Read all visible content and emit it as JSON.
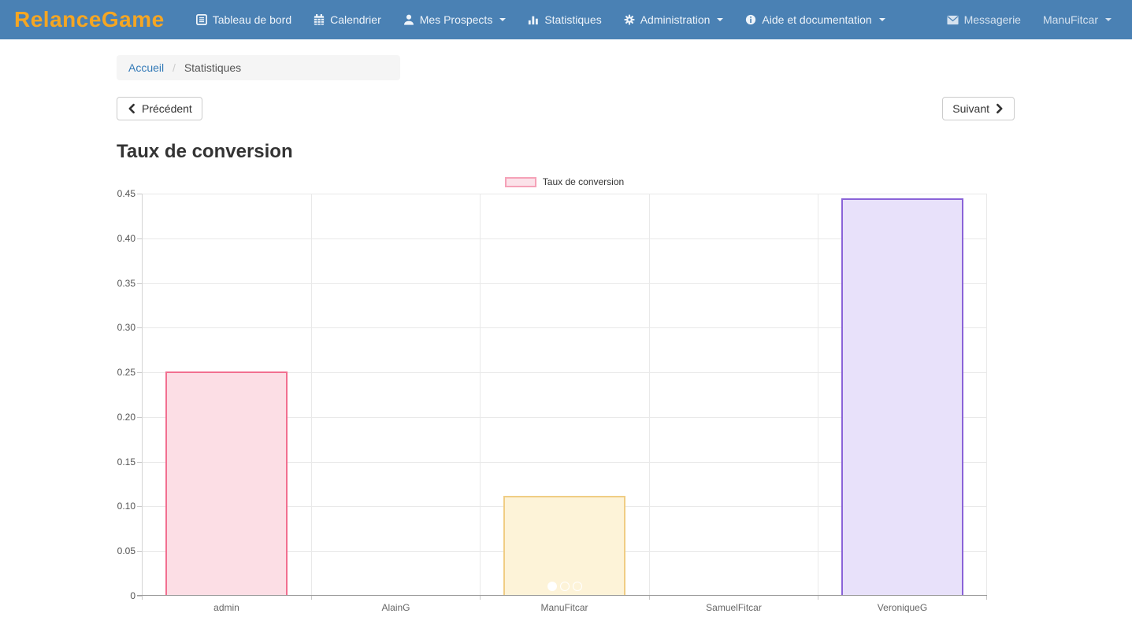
{
  "navbar": {
    "brand": "RelanceGame",
    "items": [
      {
        "label": "Tableau de bord",
        "icon": "journal-icon",
        "caret": false
      },
      {
        "label": "Calendrier",
        "icon": "calendar-icon",
        "caret": false
      },
      {
        "label": "Mes Prospects",
        "icon": "person-icon",
        "caret": true
      },
      {
        "label": "Statistiques",
        "icon": "bar-chart-icon",
        "caret": false
      },
      {
        "label": "Administration",
        "icon": "gear-icon",
        "caret": true
      },
      {
        "label": "Aide et documentation",
        "icon": "info-icon",
        "caret": true
      }
    ],
    "right_items": [
      {
        "label": "Messagerie",
        "icon": "envelope-icon",
        "caret": false
      },
      {
        "label": "ManuFitcar",
        "icon": null,
        "caret": true
      }
    ]
  },
  "breadcrumb": {
    "home": "Accueil",
    "separator": "/",
    "current": "Statistiques"
  },
  "pager": {
    "prev_label": "Précédent",
    "next_label": "Suivant"
  },
  "page_title": "Taux de conversion",
  "carousel": {
    "dots": 3,
    "active_index": 0
  },
  "chart_data": {
    "type": "bar",
    "title": "Taux de conversion",
    "legend_label": "Taux de conversion",
    "legend_position": "top",
    "categories": [
      "admin",
      "AlainG",
      "ManuFitcar",
      "SamuelFitcar",
      "VeroniqueG"
    ],
    "values": [
      0.25,
      0,
      0.111,
      0,
      0.444
    ],
    "ylim": [
      0,
      0.45
    ],
    "ytick_step": 0.05,
    "ytick_labels": [
      "0",
      "0.05",
      "0.10",
      "0.15",
      "0.20",
      "0.25",
      "0.30",
      "0.35",
      "0.40",
      "0.45"
    ],
    "grid": true,
    "bar_colors": [
      {
        "fill": "#fcdee5",
        "border": "#f26f90"
      },
      null,
      {
        "fill": "#fdf3d8",
        "border": "#f0cd84"
      },
      null,
      {
        "fill": "#e8e1fa",
        "border": "#8a63d8"
      }
    ]
  },
  "colors": {
    "navbar_bg": "#4a81b4",
    "brand": "#f5a623",
    "link_blue": "#337ab7",
    "breadcrumb_bg": "#f5f5f5",
    "grid": "#e9e9e9"
  }
}
